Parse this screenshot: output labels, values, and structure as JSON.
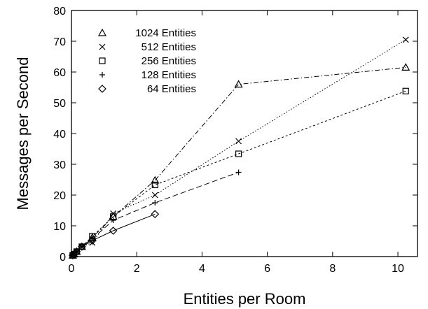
{
  "chart_data": {
    "type": "line",
    "title": "",
    "xlabel": "Entities per Room",
    "ylabel": "Messages per Second",
    "xlim": [
      0,
      10.6
    ],
    "ylim": [
      0,
      80
    ],
    "xticks": [
      0,
      2,
      4,
      6,
      8,
      10
    ],
    "yticks": [
      0,
      10,
      20,
      30,
      40,
      50,
      60,
      70,
      80
    ],
    "xtick_labels": [
      "0",
      "2",
      "4",
      "6",
      "8",
      "10"
    ],
    "ytick_labels": [
      "0",
      "10",
      "20",
      "30",
      "40",
      "50",
      "60",
      "70",
      "80"
    ],
    "grid": false,
    "legend_position": "top-left",
    "series": [
      {
        "name": "1024 Entities",
        "marker": "triangle",
        "dash": "dash-dot",
        "x": [
          0.04,
          0.08,
          0.16,
          0.32,
          0.64,
          1.28,
          2.56,
          5.12,
          10.24
        ],
        "y": [
          0.4,
          0.8,
          1.6,
          3.2,
          6.2,
          13.0,
          24.8,
          56.0,
          61.5
        ]
      },
      {
        "name": "512 Entities",
        "marker": "x",
        "dash": "dotted",
        "x": [
          0.04,
          0.08,
          0.16,
          0.32,
          0.64,
          1.28,
          2.56,
          5.12,
          10.24
        ],
        "y": [
          0.4,
          0.8,
          1.6,
          3.2,
          4.5,
          14.0,
          20.0,
          37.5,
          70.5
        ]
      },
      {
        "name": "256 Entities",
        "marker": "square",
        "dash": "short-dash",
        "x": [
          0.04,
          0.08,
          0.16,
          0.32,
          0.64,
          1.28,
          2.56,
          5.12,
          10.24
        ],
        "y": [
          0.4,
          0.8,
          1.6,
          3.2,
          6.6,
          13.0,
          23.3,
          33.4,
          53.8
        ]
      },
      {
        "name": "128 Entities",
        "marker": "plus",
        "dash": "long-dash",
        "x": [
          0.04,
          0.08,
          0.16,
          0.32,
          0.64,
          1.28,
          2.56,
          5.12
        ],
        "y": [
          0.4,
          0.8,
          1.6,
          3.2,
          5.8,
          11.8,
          17.5,
          27.4
        ]
      },
      {
        "name": "64 Entities",
        "marker": "diamond",
        "dash": "solid",
        "x": [
          0.04,
          0.08,
          0.16,
          0.32,
          0.64,
          1.28,
          2.56
        ],
        "y": [
          0.4,
          0.8,
          1.6,
          3.2,
          5.2,
          8.4,
          13.8
        ]
      }
    ]
  }
}
